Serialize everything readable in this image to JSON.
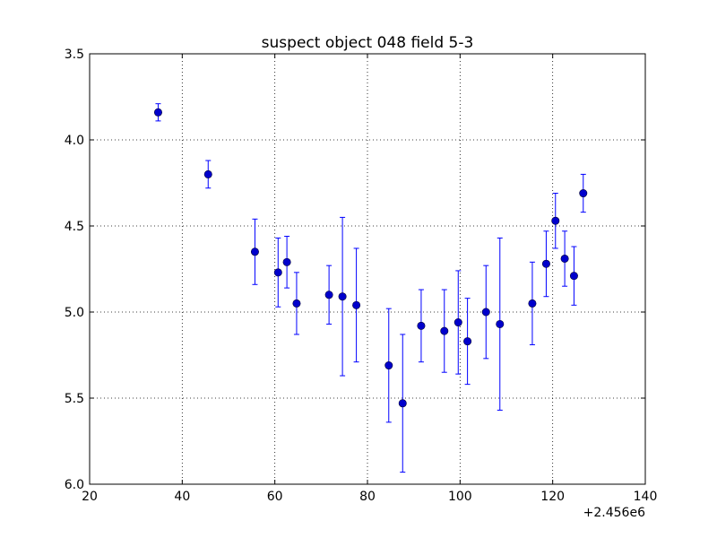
{
  "chart_data": {
    "type": "scatter",
    "title": "suspect object 048 field 5-3",
    "xlabel": "",
    "ylabel": "",
    "x_offset_label": "+2.456e6",
    "xlim": [
      20,
      140
    ],
    "ylim": [
      3.5,
      6.0
    ],
    "y_inverted": true,
    "grid": true,
    "xticks": [
      "20",
      "40",
      "60",
      "80",
      "100",
      "120",
      "140"
    ],
    "yticks": [
      "3.5",
      "4.0",
      "4.5",
      "5.0",
      "5.5",
      "6.0"
    ],
    "series": [
      {
        "marker_color": "#0000cc",
        "errorbar_color": "#0000ff",
        "points": [
          {
            "x": 34.8,
            "y": 3.84,
            "err": 0.05
          },
          {
            "x": 45.6,
            "y": 4.2,
            "err": 0.08
          },
          {
            "x": 55.7,
            "y": 4.65,
            "err": 0.19
          },
          {
            "x": 60.7,
            "y": 4.77,
            "err": 0.2
          },
          {
            "x": 62.6,
            "y": 4.71,
            "err": 0.15
          },
          {
            "x": 64.7,
            "y": 4.95,
            "err": 0.18
          },
          {
            "x": 71.7,
            "y": 4.9,
            "err": 0.17
          },
          {
            "x": 74.6,
            "y": 4.91,
            "err": 0.46
          },
          {
            "x": 77.6,
            "y": 4.96,
            "err": 0.33
          },
          {
            "x": 84.6,
            "y": 5.31,
            "err": 0.33
          },
          {
            "x": 87.6,
            "y": 5.53,
            "err": 0.4
          },
          {
            "x": 91.6,
            "y": 5.08,
            "err": 0.21
          },
          {
            "x": 96.6,
            "y": 5.11,
            "err": 0.24
          },
          {
            "x": 99.6,
            "y": 5.06,
            "err": 0.3
          },
          {
            "x": 101.6,
            "y": 5.17,
            "err": 0.25
          },
          {
            "x": 105.6,
            "y": 5.0,
            "err": 0.27
          },
          {
            "x": 108.6,
            "y": 5.07,
            "err": 0.5
          },
          {
            "x": 115.6,
            "y": 4.95,
            "err": 0.24
          },
          {
            "x": 118.6,
            "y": 4.72,
            "err": 0.19
          },
          {
            "x": 120.6,
            "y": 4.47,
            "err": 0.16
          },
          {
            "x": 122.6,
            "y": 4.69,
            "err": 0.16
          },
          {
            "x": 124.6,
            "y": 4.79,
            "err": 0.17
          },
          {
            "x": 126.6,
            "y": 4.31,
            "err": 0.11
          }
        ]
      }
    ]
  }
}
